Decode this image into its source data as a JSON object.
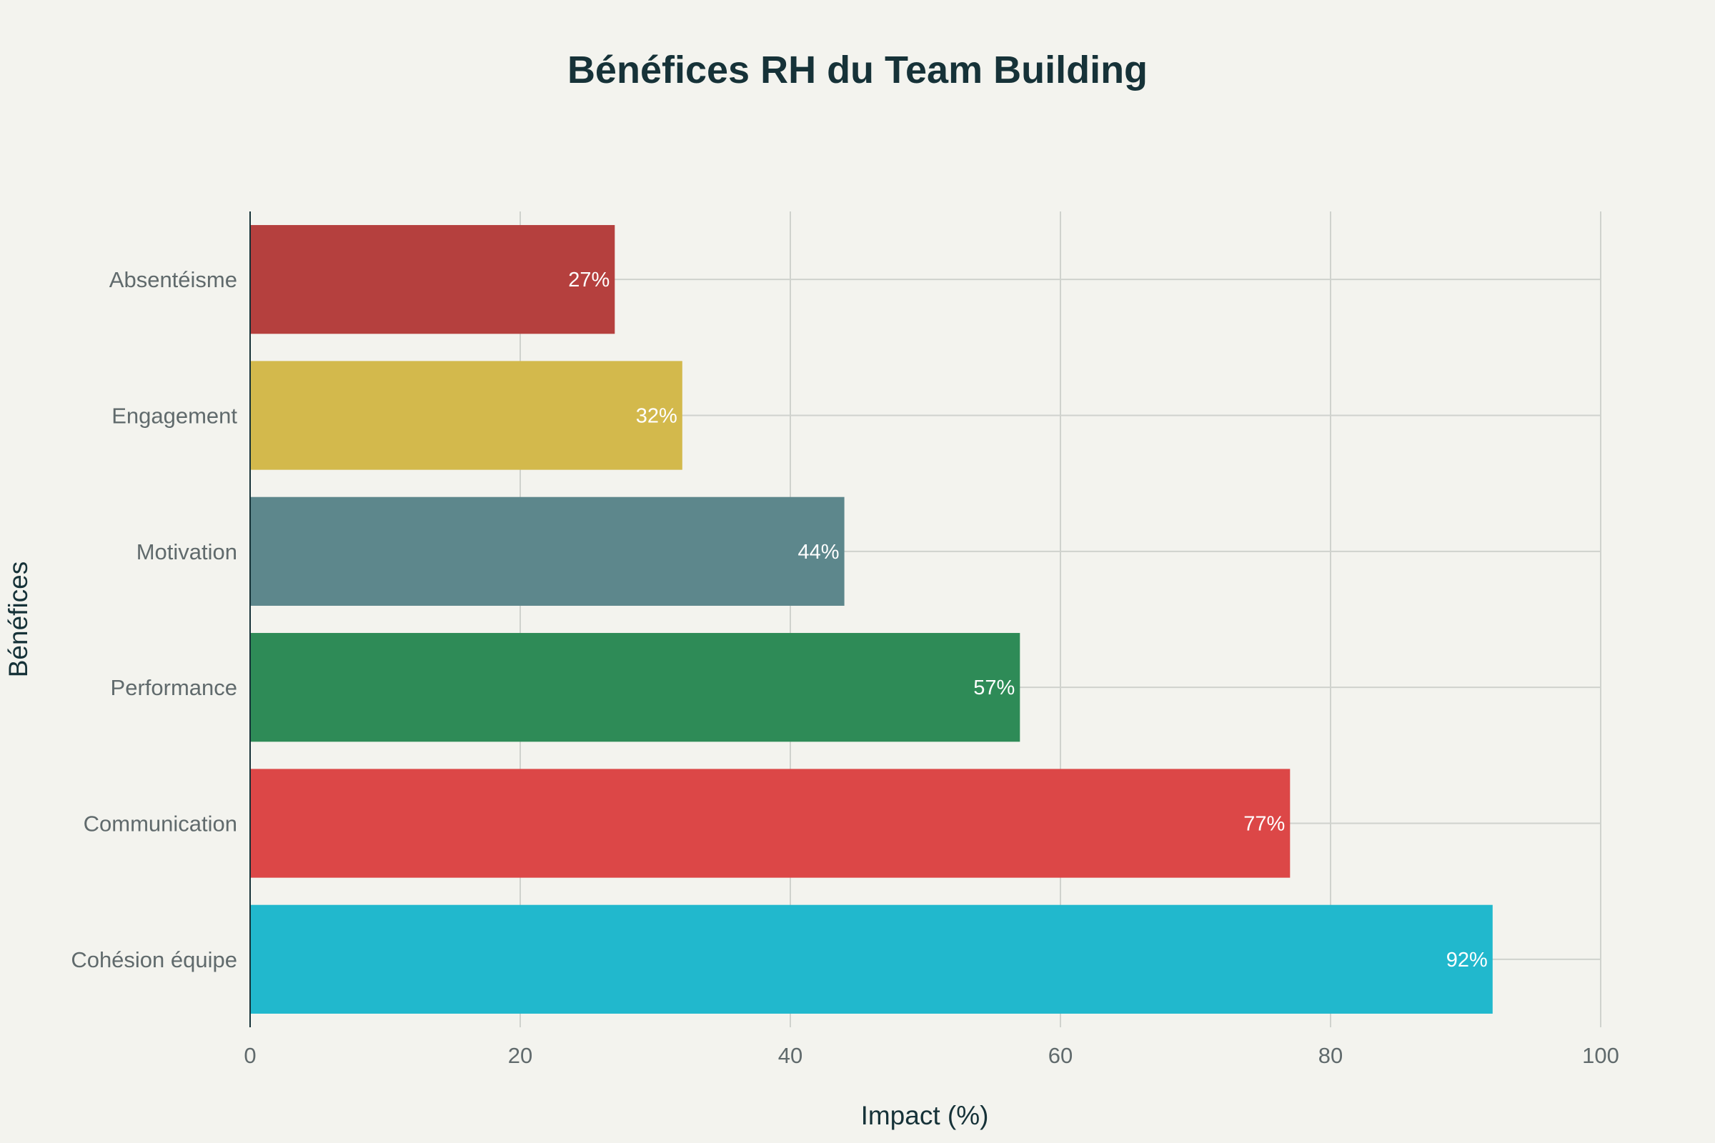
{
  "chart_data": {
    "type": "bar",
    "orientation": "horizontal",
    "title": "Bénéfices RH du Team Building",
    "xlabel": "Impact (%)",
    "ylabel": "Bénéfices",
    "xlim": [
      0,
      100
    ],
    "xticks": [
      0,
      20,
      40,
      60,
      80,
      100
    ],
    "grid": true,
    "categories": [
      "Cohésion équipe",
      "Communication",
      "Performance",
      "Motivation",
      "Engagement",
      "Absentéisme"
    ],
    "values": [
      92,
      77,
      57,
      44,
      32,
      27
    ],
    "value_labels": [
      "92%",
      "77%",
      "57%",
      "44%",
      "32%",
      "27%"
    ],
    "colors": [
      "#21b8cd",
      "#dc4747",
      "#2e8b57",
      "#5d878c",
      "#d3b94c",
      "#b5403e"
    ]
  }
}
